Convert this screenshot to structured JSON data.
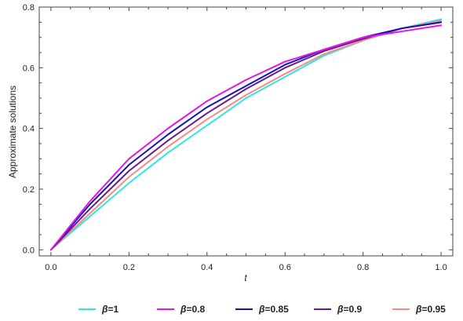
{
  "chart_data": {
    "type": "line",
    "xlabel": "t",
    "ylabel": "Approximate solutions",
    "xlim": [
      -0.03,
      1.03
    ],
    "ylim": [
      -0.02,
      0.8
    ],
    "xticks": [
      0.0,
      0.2,
      0.4,
      0.6,
      0.8,
      1.0
    ],
    "xtick_labels": [
      "0.0",
      "0.2",
      "0.4",
      "0.6",
      "0.8",
      "1.0"
    ],
    "yticks": [
      0.0,
      0.2,
      0.4,
      0.6,
      0.8
    ],
    "ytick_labels": [
      "0.0",
      "0.2",
      "0.4",
      "0.6",
      "0.8"
    ],
    "grid": false,
    "legend_position": "bottom",
    "x": [
      0.0,
      0.1,
      0.2,
      0.3,
      0.4,
      0.5,
      0.6,
      0.7,
      0.8,
      0.9,
      1.0
    ],
    "series": [
      {
        "name": "β=1",
        "beta": "1",
        "color": "#2EE6E6",
        "values": [
          0.0,
          0.11,
          0.22,
          0.32,
          0.41,
          0.5,
          0.57,
          0.64,
          0.69,
          0.73,
          0.76
        ]
      },
      {
        "name": "β=0.8",
        "beta": "0.8",
        "color": "#E614E6",
        "values": [
          0.0,
          0.16,
          0.3,
          0.4,
          0.49,
          0.56,
          0.62,
          0.66,
          0.7,
          0.72,
          0.74
        ]
      },
      {
        "name": "β=0.85",
        "beta": "0.85",
        "color": "#1414B4",
        "values": [
          0.0,
          0.15,
          0.28,
          0.38,
          0.47,
          0.54,
          0.61,
          0.66,
          0.7,
          0.73,
          0.75
        ]
      },
      {
        "name": "β=0.9",
        "beta": "0.9",
        "color": "#6A1A8C",
        "values": [
          0.0,
          0.135,
          0.26,
          0.36,
          0.45,
          0.53,
          0.6,
          0.655,
          0.695,
          0.73,
          0.75
        ]
      },
      {
        "name": "β=0.95",
        "beta": "0.95",
        "color": "#F08C82",
        "values": [
          0.0,
          0.12,
          0.24,
          0.34,
          0.43,
          0.51,
          0.58,
          0.645,
          0.69,
          0.73,
          0.755
        ]
      }
    ]
  }
}
